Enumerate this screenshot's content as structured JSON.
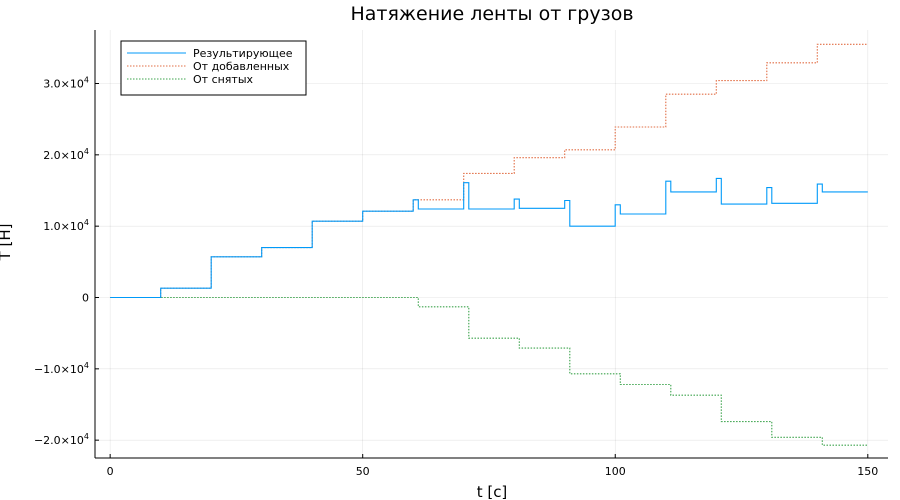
{
  "chart_data": {
    "type": "line",
    "title": "Натяжение ленты от грузов",
    "xlabel": "t [c]",
    "ylabel": "T [Н]",
    "xlim": [
      -3,
      154
    ],
    "ylim": [
      -22500,
      37500
    ],
    "xticks": [
      0,
      50,
      100,
      150
    ],
    "yticks": [
      {
        "value": -20000,
        "mantissa": "−2.0×10",
        "exp": "4"
      },
      {
        "value": -10000,
        "mantissa": "−1.0×10",
        "exp": "4"
      },
      {
        "value": 0,
        "mantissa": "0",
        "exp": ""
      },
      {
        "value": 10000,
        "mantissa": "1.0×10",
        "exp": "4"
      },
      {
        "value": 20000,
        "mantissa": "2.0×10",
        "exp": "4"
      },
      {
        "value": 30000,
        "mantissa": "3.0×10",
        "exp": "4"
      }
    ],
    "grid": true,
    "legend_position": "top-left",
    "series": [
      {
        "name": "Результирующее",
        "color": "#009af9",
        "dash": "solid",
        "x": [
          0,
          10,
          10,
          20,
          20,
          30,
          30,
          40,
          40,
          50,
          50,
          60,
          60,
          61,
          61,
          70,
          70,
          71,
          71,
          80,
          80,
          81,
          81,
          90,
          90,
          91,
          91,
          100,
          100,
          101,
          101,
          110,
          110,
          111,
          111,
          120,
          120,
          121,
          121,
          130,
          130,
          131,
          131,
          140,
          140,
          141,
          141,
          150
        ],
        "y": [
          0,
          0,
          1300,
          1300,
          5700,
          5700,
          7000,
          7000,
          10700,
          10700,
          12100,
          12100,
          13700,
          13700,
          12400,
          12400,
          16100,
          16100,
          12400,
          12400,
          13800,
          13800,
          12500,
          12500,
          13600,
          13600,
          10000,
          10000,
          13000,
          13000,
          11700,
          11700,
          16300,
          16300,
          14800,
          14800,
          16700,
          16700,
          13100,
          13100,
          15400,
          15400,
          13200,
          13200,
          15900,
          15900,
          14800,
          14800
        ]
      },
      {
        "name": "От добавленных",
        "color": "#e26f46",
        "dash": "dotted",
        "x": [
          0,
          10,
          10,
          20,
          20,
          30,
          30,
          40,
          40,
          50,
          50,
          60,
          60,
          70,
          70,
          80,
          80,
          90,
          90,
          100,
          100,
          110,
          110,
          120,
          120,
          130,
          130,
          140,
          140,
          150
        ],
        "y": [
          0,
          0,
          1300,
          1300,
          5700,
          5700,
          7000,
          7000,
          10700,
          10700,
          12100,
          12100,
          13700,
          13700,
          17400,
          17400,
          19600,
          19600,
          20700,
          20700,
          23900,
          23900,
          28500,
          28500,
          30400,
          30400,
          32900,
          32900,
          35500,
          35500
        ]
      },
      {
        "name": "От снятых",
        "color": "#3da44d",
        "dash": "dotted",
        "x": [
          0,
          61,
          61,
          71,
          71,
          81,
          81,
          91,
          91,
          101,
          101,
          111,
          111,
          121,
          121,
          131,
          131,
          141,
          141,
          150
        ],
        "y": [
          0,
          0,
          -1300,
          -1300,
          -5700,
          -5700,
          -7100,
          -7100,
          -10700,
          -10700,
          -12200,
          -12200,
          -13700,
          -13700,
          -17400,
          -17400,
          -19600,
          -19600,
          -20700,
          -20700
        ]
      }
    ]
  }
}
